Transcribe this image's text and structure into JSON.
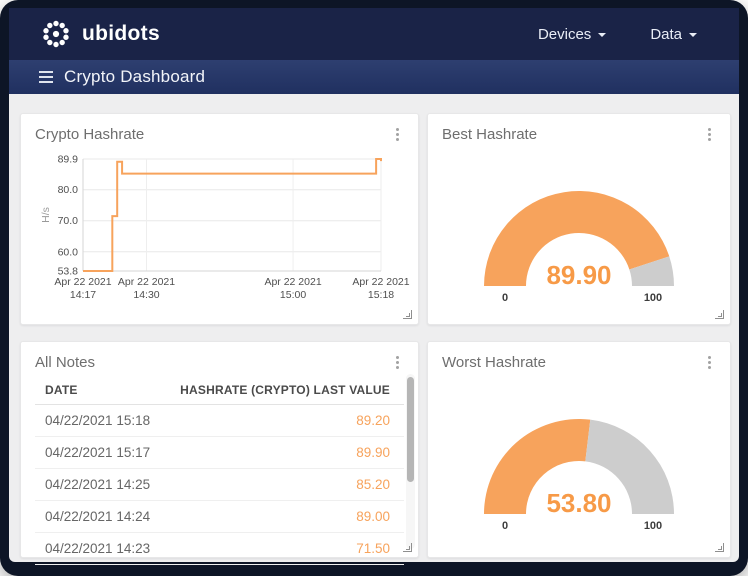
{
  "navbar": {
    "logo_text": "ubidots",
    "items": [
      {
        "label": "Devices"
      },
      {
        "label": "Data"
      }
    ]
  },
  "subheader": {
    "title": "Crypto Dashboard"
  },
  "colors": {
    "accent_orange": "#f7a35c",
    "value_orange": "#f79a47",
    "gauge_gray": "#cdcdcd",
    "navbar_navy": "#1a2347",
    "grid_line": "#e8e8e8",
    "axis_text": "#4f4f4f"
  },
  "cards": {
    "line_chart": {
      "title": "Crypto Hashrate"
    },
    "best_gauge": {
      "title": "Best Hashrate"
    },
    "notes": {
      "title": "All Notes",
      "columns": [
        "DATE",
        "HASHRATE (CRYPTO) LAST VALUE"
      ],
      "rows": [
        {
          "date": "04/22/2021 15:18",
          "value": "89.20"
        },
        {
          "date": "04/22/2021 15:17",
          "value": "89.90"
        },
        {
          "date": "04/22/2021 14:25",
          "value": "85.20"
        },
        {
          "date": "04/22/2021 14:24",
          "value": "89.00"
        },
        {
          "date": "04/22/2021 14:23",
          "value": "71.50"
        }
      ]
    },
    "worst_gauge": {
      "title": "Worst Hashrate"
    }
  },
  "chart_data": [
    {
      "type": "line",
      "title": "Crypto Hashrate",
      "ylabel": "H/s",
      "ylim": [
        53.8,
        89.9
      ],
      "y_ticks": [
        "89.9",
        "80.0",
        "70.0",
        "60.0",
        "53.8"
      ],
      "x_domain_minutes": [
        0,
        61
      ],
      "x_ticks": [
        {
          "line1": "Apr 22 2021",
          "line2": "14:17",
          "min": 0
        },
        {
          "line1": "Apr 22 2021",
          "line2": "14:30",
          "min": 13
        },
        {
          "line1": "Apr 22 2021",
          "line2": "15:00",
          "min": 43
        },
        {
          "line1": "Apr 22 2021",
          "line2": "15:18",
          "min": 61
        }
      ],
      "step_points": [
        {
          "time": "14:17",
          "min": 0,
          "value": 53.8
        },
        {
          "time": "14:23",
          "min": 6,
          "value": 71.5
        },
        {
          "time": "14:24",
          "min": 7,
          "value": 89.0
        },
        {
          "time": "14:25",
          "min": 8,
          "value": 85.2
        },
        {
          "time": "15:17",
          "min": 60,
          "value": 89.9
        },
        {
          "time": "15:18",
          "min": 61,
          "value": 89.2
        }
      ],
      "grid": true,
      "legend": false
    },
    {
      "type": "gauge",
      "title": "Best Hashrate",
      "value_label": "89.90",
      "percent": 89.9,
      "min_label": "0",
      "max_label": "100",
      "range": [
        0,
        100
      ]
    },
    {
      "type": "gauge",
      "title": "Worst Hashrate",
      "value_label": "53.80",
      "percent": 53.8,
      "min_label": "0",
      "max_label": "100",
      "range": [
        0,
        100
      ]
    }
  ]
}
